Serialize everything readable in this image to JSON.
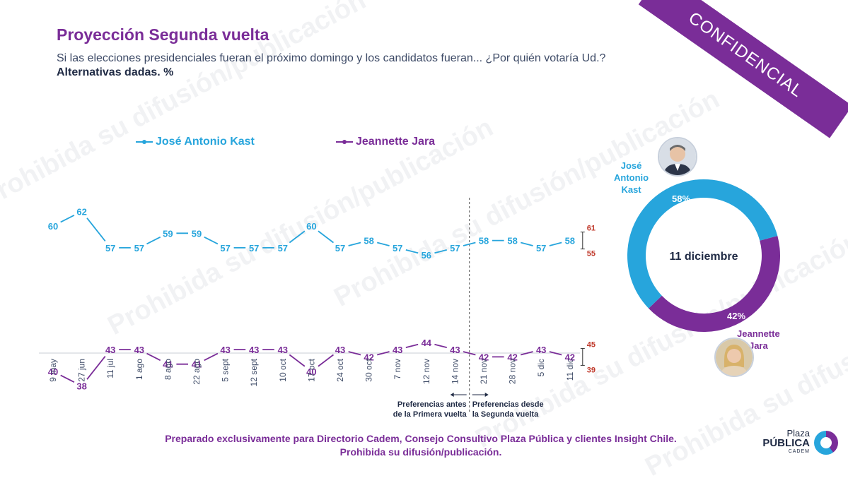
{
  "header": {
    "title": "Proyección Segunda vuelta",
    "subtitle": "Si las elecciones presidenciales fueran el próximo domingo y los candidatos fueran... ¿Por quién votaría Ud.?",
    "subtitle2": "Alternativas dadas. %"
  },
  "badge": {
    "label": "CONFIDENCIAL"
  },
  "watermark_text": "Prohibida su difusión/publicación",
  "chart_data": [
    {
      "type": "line",
      "categories": [
        "9 may",
        "27 jun",
        "11 jul",
        "1 ago",
        "8 ago",
        "22 ago",
        "5 sept",
        "12 sept",
        "10 oct",
        "17 oct",
        "24 oct",
        "30 oct",
        "7 nov",
        "12 nov",
        "14 nov",
        "21 nov",
        "28 nov",
        "5 dic",
        "11 dic"
      ],
      "series": [
        {
          "name": "José Antonio Kast",
          "color": "#27a5dc",
          "values": [
            60,
            62,
            57,
            57,
            59,
            59,
            57,
            57,
            57,
            60,
            57,
            58,
            57,
            56,
            57,
            58,
            58,
            57,
            58
          ],
          "range": [
            61,
            55
          ]
        },
        {
          "name": "Jeannette Jara",
          "color": "#7a2d98",
          "values": [
            40,
            38,
            43,
            43,
            41,
            41,
            43,
            43,
            43,
            40,
            43,
            42,
            43,
            44,
            43,
            42,
            42,
            43,
            42
          ],
          "range": [
            45,
            39
          ]
        }
      ],
      "range_color": "#c0392b",
      "annotations": {
        "before": "Preferencias antes de la Primera vuelta",
        "after": "Preferencias desde la Segunda vuelta",
        "before_lines": [
          "Preferencias antes",
          "de la Primera vuelta"
        ],
        "after_lines": [
          "Preferencias desde",
          "la Segunda vuelta"
        ]
      },
      "ylim": [
        30,
        70
      ]
    },
    {
      "type": "pie",
      "title": "11 diciembre",
      "slices": [
        {
          "name": "José Antonio Kast",
          "label_lines": [
            "José",
            "Antonio",
            "Kast"
          ],
          "value": 58,
          "label": "58%",
          "color": "#27a5dc"
        },
        {
          "name": "Jeannette Jara",
          "label_lines": [
            "Jeannette",
            "Jara"
          ],
          "value": 42,
          "label": "42%",
          "color": "#7a2d98"
        }
      ]
    }
  ],
  "footer": {
    "line1": "Preparado exclusivamente para Directorio Cadem, Consejo Consultivo Plaza Pública y clientes Insight Chile.",
    "line2": "Prohibida su difusión/publicación."
  },
  "logo": {
    "line1": "Plaza",
    "line2": "PÚBLICA",
    "line3": "CADEM"
  }
}
